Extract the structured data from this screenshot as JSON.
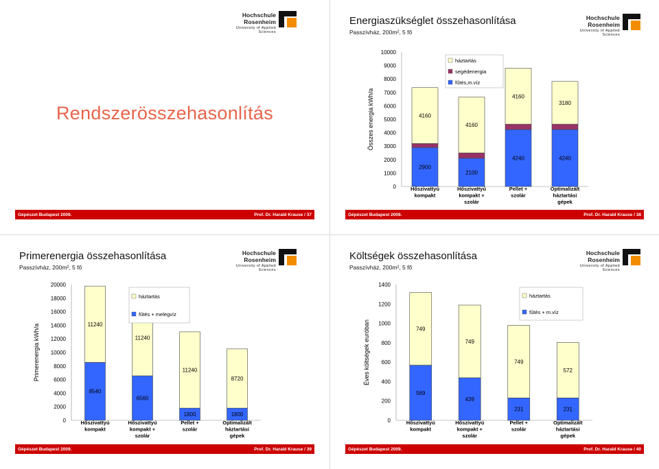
{
  "footer": {
    "event": "Gépészet   Budapest 2009.",
    "author_37": "Prof. Dr. Harald Krause / 37",
    "author_38": "Prof. Dr. Harald Krause / 38",
    "author_39": "Prof. Dr. Harald Krause / 39",
    "author_40": "Prof. Dr. Harald Krause / 40"
  },
  "logo": {
    "name": "Hochschule Rosenheim",
    "tagline": "University of Applied Sciences"
  },
  "slide37": {
    "title": "Rendszerösszehasonlítás"
  },
  "slide38": {
    "title": "Energiaszükséglet összehasonlítása",
    "subtitle": "Passzívház, 200m², 5 fő"
  },
  "slide39": {
    "title": "Primerenergia összehasonlítása",
    "subtitle": "Passzívház, 200m², 5 fő"
  },
  "slide40": {
    "title": "Költségek összehasonlítása",
    "subtitle": "Passzívház, 200m², 5 fő"
  },
  "colors": {
    "footer": "#cc0000",
    "title_accent": "#e8644a",
    "bar_top": "#ffffcc",
    "bar_bottom": "#3366ff",
    "bar_mid": "#993366"
  },
  "chart_data": [
    {
      "id": "energy",
      "type": "bar",
      "stacked": true,
      "ylabel": "Összes energia kWh/a",
      "ylim": [
        0,
        10000
      ],
      "yticks": [
        0,
        1000,
        2000,
        3000,
        4000,
        5000,
        6000,
        7000,
        8000,
        9000,
        10000
      ],
      "categories": [
        "Hőszivattyú kompakt",
        "Hőszivattyú kompakt + szolár",
        "Pellet + szolár",
        "Optimalizált háztartási gépek"
      ],
      "series": [
        {
          "name": "fűtés,m.víz",
          "color": "#3366ff",
          "values": [
            2900,
            2100,
            4240,
            4240
          ],
          "labels": [
            "2900",
            "2100",
            "4240",
            "4240"
          ]
        },
        {
          "name": "segédenergia",
          "color": "#993366",
          "values": [
            300,
            400,
            400,
            400
          ],
          "labels": [
            "",
            "",
            "",
            ""
          ]
        },
        {
          "name": "háztartás",
          "color": "#ffffcc",
          "values": [
            4160,
            4160,
            4160,
            3180
          ],
          "labels": [
            "4160",
            "4160",
            "4160",
            "3180"
          ]
        }
      ],
      "legend": "top-center"
    },
    {
      "id": "primary",
      "type": "bar",
      "stacked": true,
      "ylabel": "Primerenergia kWh/a",
      "ylim": [
        0,
        20000
      ],
      "yticks": [
        0,
        2000,
        4000,
        6000,
        8000,
        10000,
        12000,
        14000,
        16000,
        18000,
        20000
      ],
      "categories": [
        "Hőszivattyú kompakt",
        "Hőszivattyú kompakt + szolár",
        "Pellet + szolár",
        "Optimalizált háztartási gépek"
      ],
      "series": [
        {
          "name": "fűtés + melegvíz",
          "color": "#3366ff",
          "values": [
            8540,
            6560,
            1800,
            1800
          ],
          "labels": [
            "8540",
            "6560",
            "1800",
            "1800"
          ]
        },
        {
          "name": "háztartás",
          "color": "#ffffcc",
          "values": [
            11240,
            11240,
            11240,
            8720
          ],
          "labels": [
            "11240",
            "11240",
            "11240",
            "8720"
          ]
        }
      ],
      "legend": "top-center"
    },
    {
      "id": "cost",
      "type": "bar",
      "stacked": true,
      "ylabel": "Éves költségek euróban",
      "ylim": [
        0,
        1400
      ],
      "yticks": [
        0,
        200,
        400,
        600,
        800,
        1000,
        1200,
        1400
      ],
      "categories": [
        "Hőszivattyú kompakt",
        "Hőszivattyú kompakt + szolár",
        "Pellet + szolár",
        "Optimalizált háztartási gépek"
      ],
      "series": [
        {
          "name": "fűtés + m.víz",
          "color": "#3366ff",
          "values": [
            569,
            439,
            231,
            231
          ],
          "labels": [
            "569",
            "439",
            "231",
            "231"
          ]
        },
        {
          "name": "háztartás",
          "color": "#ffffcc",
          "values": [
            749,
            749,
            749,
            572
          ],
          "labels": [
            "749",
            "749",
            "749",
            "572"
          ]
        }
      ],
      "legend": "top-right"
    }
  ]
}
